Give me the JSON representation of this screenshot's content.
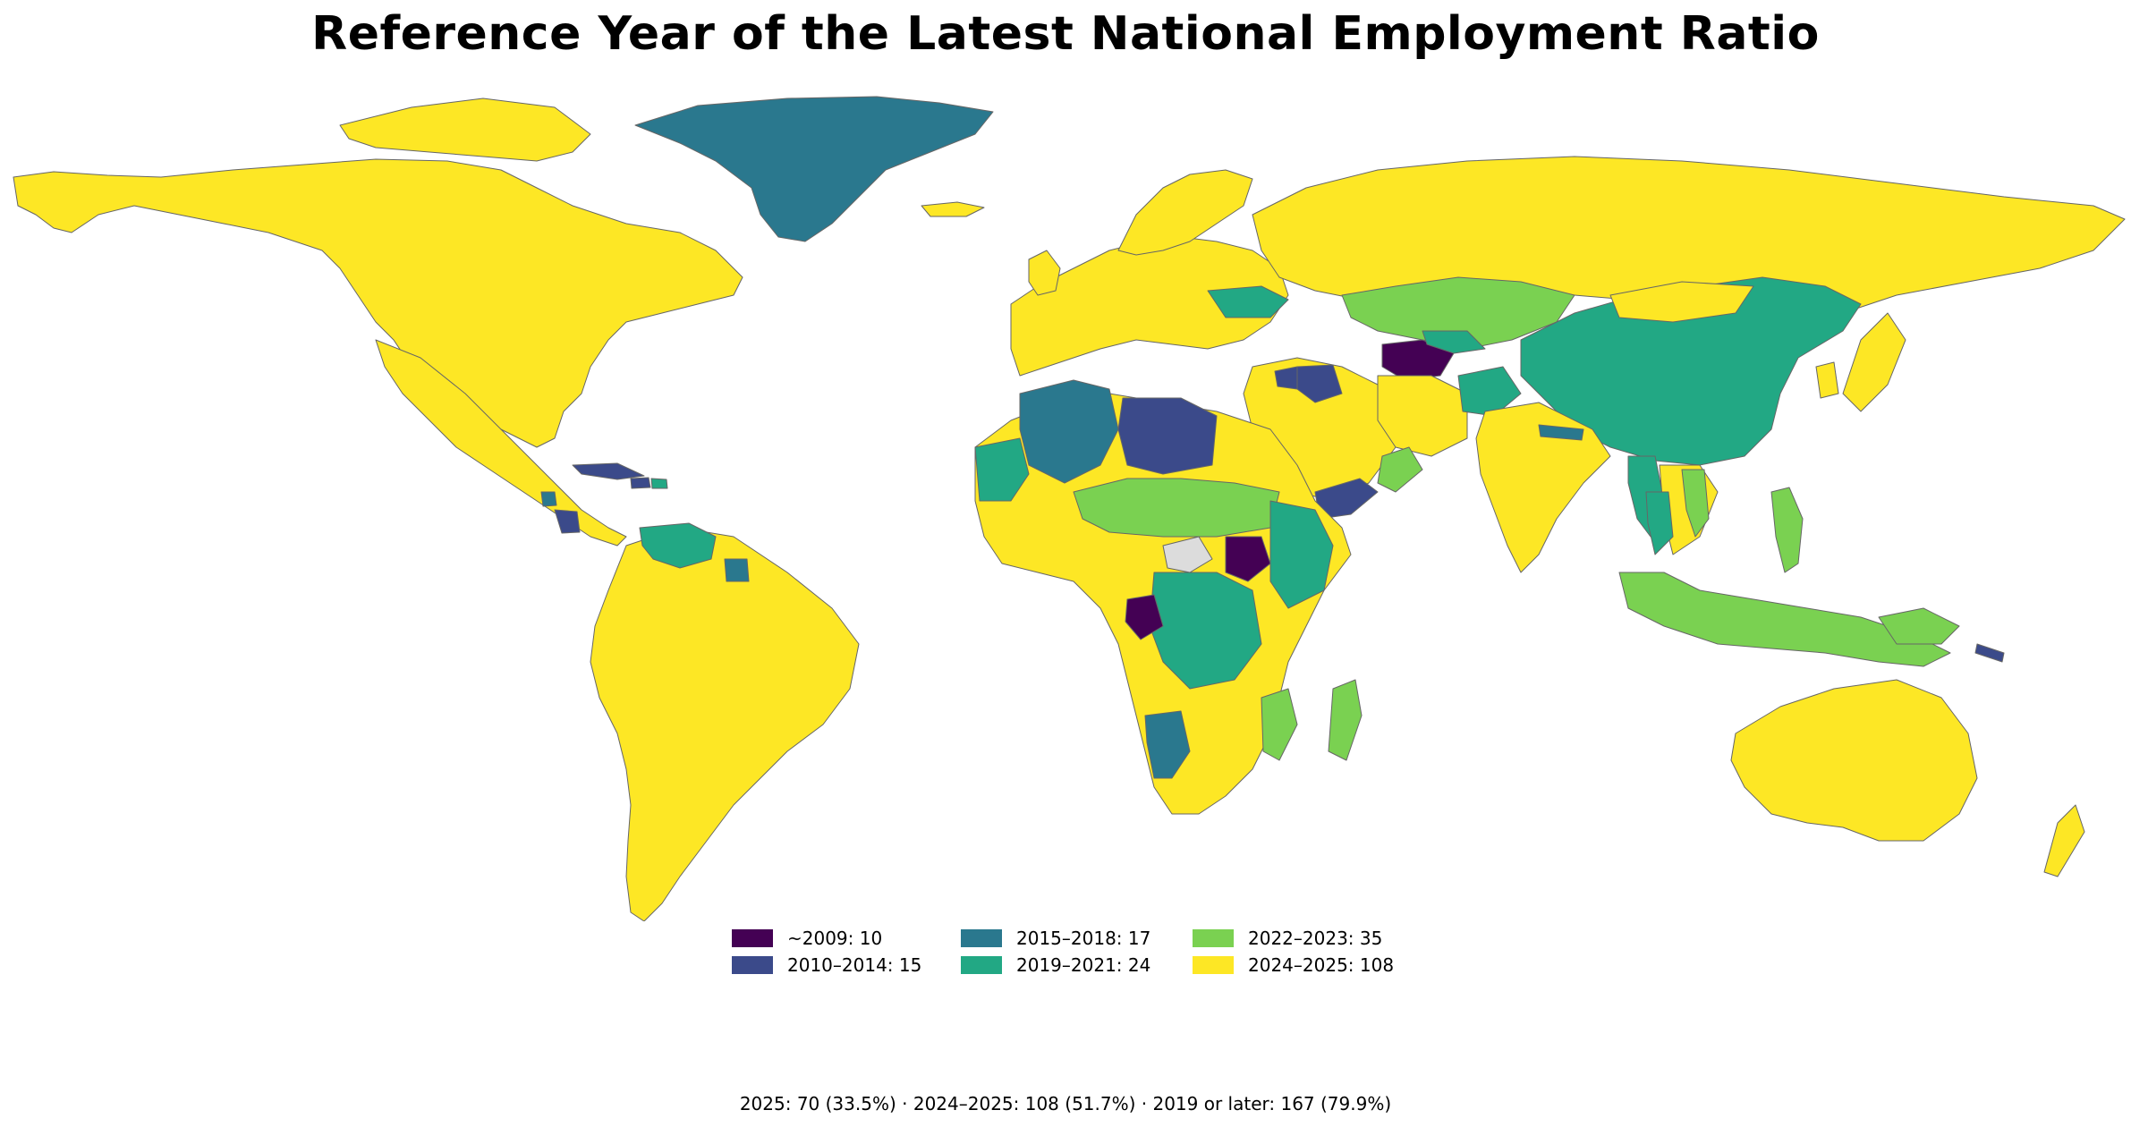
{
  "title": "Reference Year of the Latest National Employment Ratio",
  "legend": {
    "items": [
      {
        "label": "~2009: 10",
        "color": "#440154"
      },
      {
        "label": "2010–2014: 15",
        "color": "#3b4a8a"
      },
      {
        "label": "2015–2018: 17",
        "color": "#2a788e"
      },
      {
        "label": "2019–2021: 24",
        "color": "#22a884"
      },
      {
        "label": "2022–2023: 35",
        "color": "#7ad151"
      },
      {
        "label": "2024–2025: 108",
        "color": "#fde725"
      }
    ],
    "placement": "bottom-center",
    "columns": 3
  },
  "no_data_color": "#dcdcdc",
  "footer": "2025: 70 (33.5%) · 2024–2025: 108 (51.7%) · 2019 or later: 167 (79.9%)"
}
